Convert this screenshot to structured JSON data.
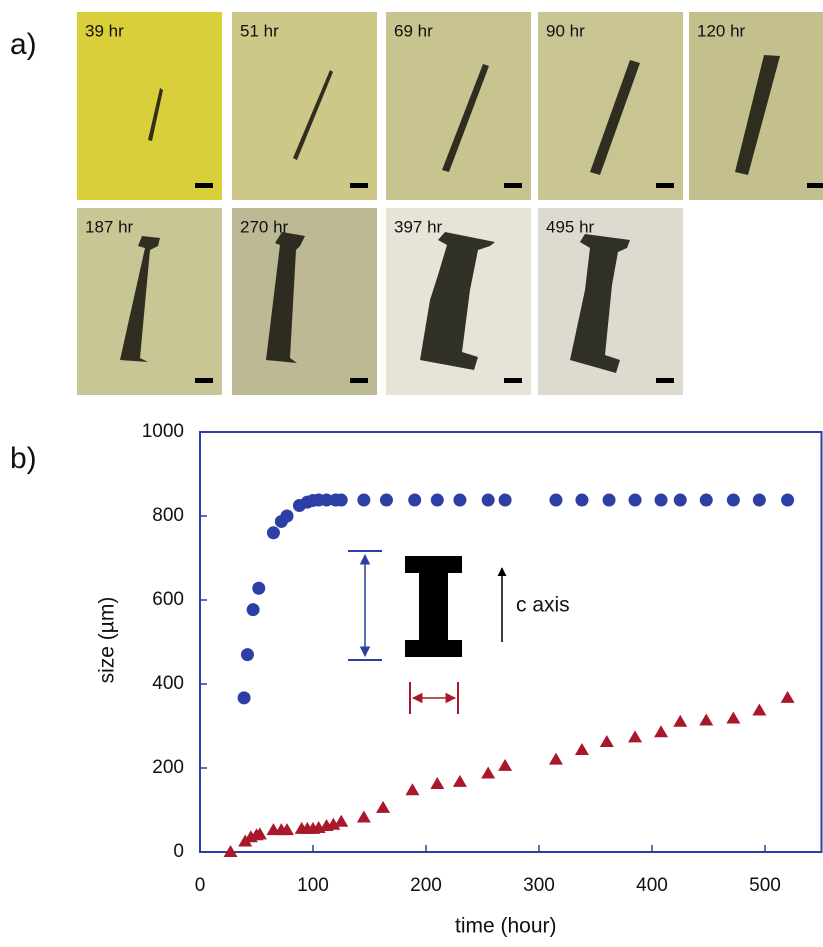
{
  "panel_a": {
    "label": "a)",
    "images": [
      {
        "label": "39 hr"
      },
      {
        "label": "51 hr"
      },
      {
        "label": "69 hr"
      },
      {
        "label": "90 hr"
      },
      {
        "label": "120 hr"
      },
      {
        "label": "187 hr"
      },
      {
        "label": "270 hr"
      },
      {
        "label": "397 hr"
      },
      {
        "label": "495 hr"
      }
    ]
  },
  "chart_data": {
    "type": "scatter",
    "panel_label": "b)",
    "x_label": "time (hour)",
    "y_label": "size (µm)",
    "annotation": "c axis",
    "xlim": [
      0,
      550
    ],
    "xticks": [
      0,
      100,
      200,
      300,
      400,
      500
    ],
    "ylim": [
      0,
      1000
    ],
    "yticks": [
      0,
      200,
      400,
      600,
      800,
      1000
    ],
    "series": [
      {
        "color": "#2b3fa6",
        "marker": "circle",
        "x": [
          39,
          42,
          47,
          52,
          65,
          72,
          77,
          88,
          95,
          100,
          105,
          112,
          120,
          125,
          145,
          165,
          190,
          210,
          230,
          255,
          270,
          315,
          338,
          362,
          385,
          408,
          425,
          448,
          472,
          495,
          520
        ],
        "values": [
          367,
          470,
          577,
          628,
          760,
          787,
          800,
          825,
          833,
          837,
          838,
          838,
          838,
          838,
          838,
          838,
          838,
          838,
          838,
          838,
          838,
          838,
          838,
          838,
          838,
          838,
          838,
          838,
          838,
          838,
          838
        ]
      },
      {
        "color": "#a8182a",
        "marker": "triangle",
        "x": [
          27,
          40,
          45,
          50,
          53,
          65,
          72,
          77,
          90,
          95,
          100,
          105,
          112,
          118,
          125,
          145,
          162,
          188,
          210,
          230,
          255,
          270,
          315,
          338,
          360,
          385,
          408,
          425,
          448,
          472,
          495,
          520
        ],
        "values": [
          0,
          25,
          35,
          40,
          42,
          52,
          52,
          52,
          55,
          55,
          55,
          57,
          62,
          65,
          72,
          82,
          105,
          147,
          162,
          167,
          187,
          205,
          220,
          243,
          262,
          273,
          285,
          310,
          313,
          318,
          337,
          367
        ]
      }
    ]
  }
}
